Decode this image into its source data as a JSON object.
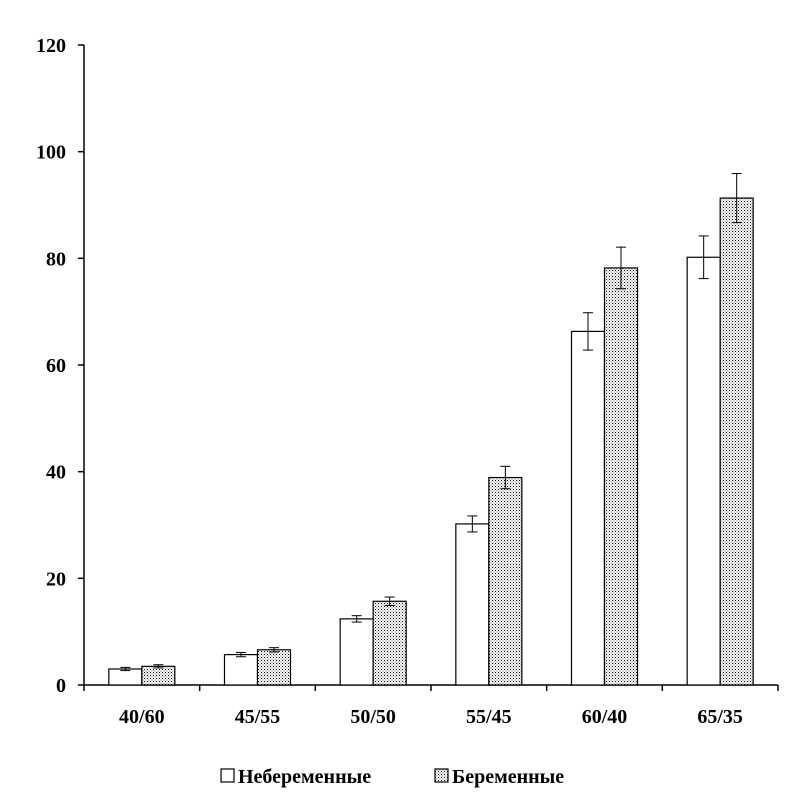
{
  "chart_data": {
    "type": "bar",
    "title": "",
    "xlabel": "",
    "ylabel": "",
    "categories": [
      "40/60",
      "45/55",
      "50/50",
      "55/45",
      "60/40",
      "65/35"
    ],
    "ylim": [
      0,
      120
    ],
    "yticks": [
      0,
      20,
      40,
      60,
      80,
      100,
      120
    ],
    "grid": false,
    "legend_position": "bottom",
    "series": [
      {
        "name": "Небеременные",
        "fill": "plain-white",
        "values": [
          3.0,
          5.7,
          12.4,
          30.2,
          66.3,
          80.2
        ],
        "errors": [
          0.3,
          0.4,
          0.6,
          1.5,
          3.5,
          4.0
        ]
      },
      {
        "name": "Беременные",
        "fill": "dotted-pattern",
        "values": [
          3.5,
          6.6,
          15.7,
          38.9,
          78.2,
          91.3
        ],
        "errors": [
          0.3,
          0.4,
          0.8,
          2.1,
          3.9,
          4.6
        ]
      }
    ],
    "colors": {
      "bar_stroke": "#000000",
      "bar_plain_fill": "#ffffff",
      "bar_pattern_dot": "#000000"
    }
  }
}
